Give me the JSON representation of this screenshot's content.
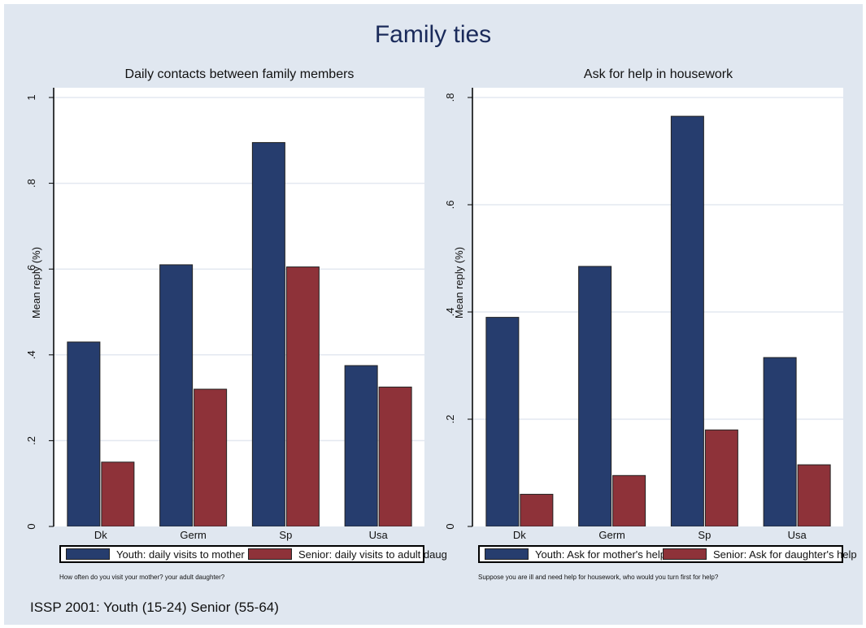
{
  "title": "Family ties",
  "caption": "ISSP 2001: Youth (15-24)   Senior (55-64)",
  "colors": {
    "youth": "#263d6e",
    "senior": "#8e3239",
    "grid": "#e3e8f0",
    "background": "#e0e7f0"
  },
  "chart_data": [
    {
      "type": "bar",
      "title": "Daily contacts between family members",
      "ylabel": "Mean reply (%)",
      "note": "How often do you visit your mother? your adult daughter?",
      "categories": [
        "Dk",
        "Germ",
        "Sp",
        "Usa"
      ],
      "ylim": [
        0,
        1
      ],
      "yticks": [
        0,
        0.2,
        0.4,
        0.6,
        0.8,
        1
      ],
      "ytick_labels": [
        "0",
        ".2",
        ".4",
        ".6",
        ".8",
        "1"
      ],
      "series": [
        {
          "name": "Youth: daily visits to mother",
          "values": [
            0.43,
            0.61,
            0.895,
            0.375
          ]
        },
        {
          "name": "Senior: daily visits to adult daug",
          "values": [
            0.15,
            0.32,
            0.605,
            0.325
          ]
        }
      ],
      "grid": true,
      "legend_position": "bottom"
    },
    {
      "type": "bar",
      "title": "Ask for help in housework",
      "ylabel": "Mean reply (%)",
      "note": "Suppose you are ill and need help for housework, who would you turn first for help?",
      "categories": [
        "Dk",
        "Germ",
        "Sp",
        "Usa"
      ],
      "ylim": [
        0,
        0.8
      ],
      "yticks": [
        0,
        0.2,
        0.4,
        0.6,
        0.8
      ],
      "ytick_labels": [
        "0",
        ".2",
        ".4",
        ".6",
        ".8"
      ],
      "series": [
        {
          "name": "Youth: Ask for mother's help",
          "values": [
            0.39,
            0.485,
            0.765,
            0.315
          ]
        },
        {
          "name": "Senior: Ask for daughter's help",
          "values": [
            0.06,
            0.095,
            0.18,
            0.115
          ]
        }
      ],
      "grid": true,
      "legend_position": "bottom"
    }
  ]
}
